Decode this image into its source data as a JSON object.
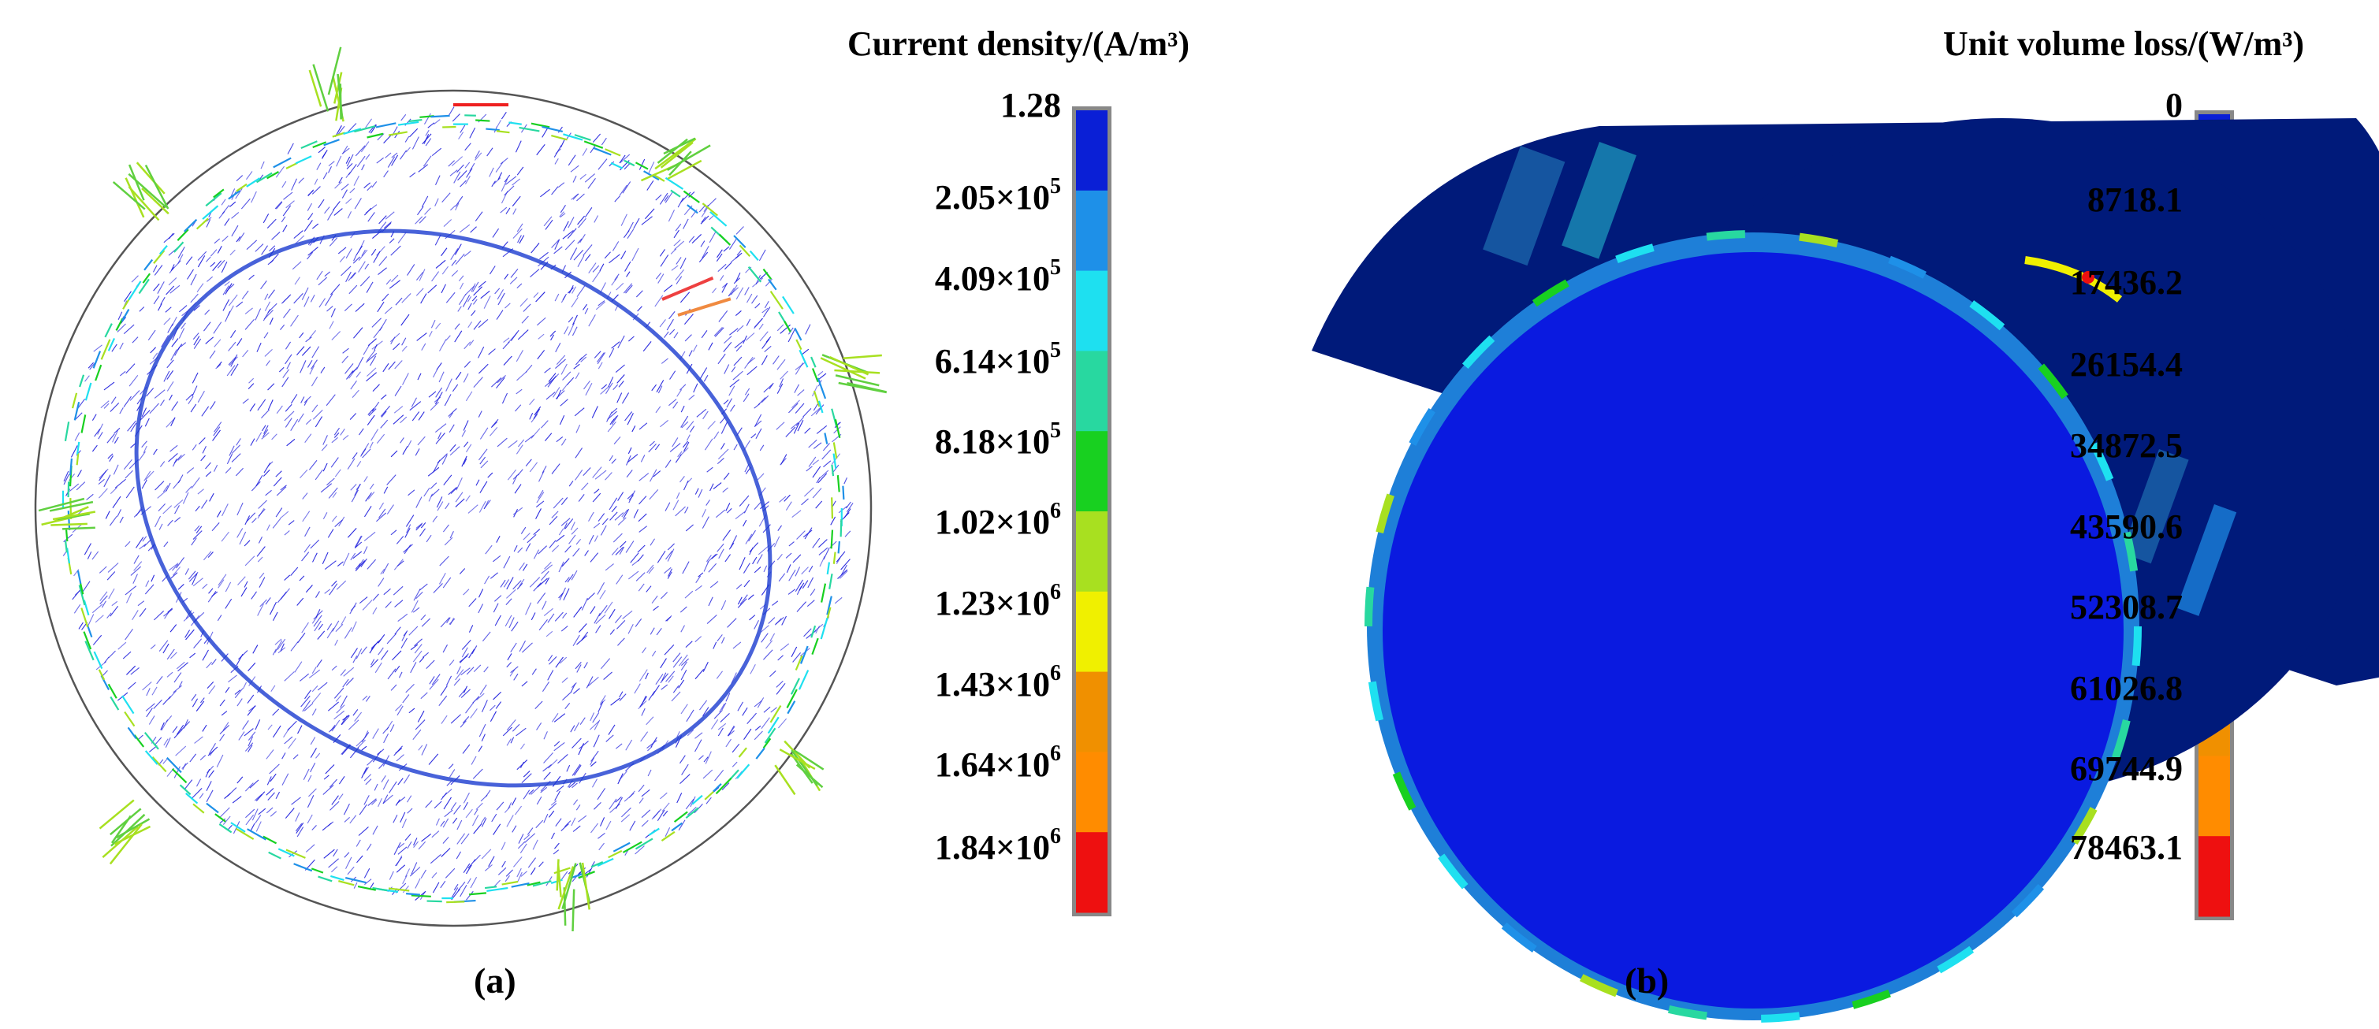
{
  "panel_a": {
    "label": "(a)",
    "colorbar_title": "Current density/(A/m³)",
    "colorbar_ticks": [
      {
        "base": "1.28",
        "exp": ""
      },
      {
        "base": "2.05×10",
        "exp": "5"
      },
      {
        "base": "4.09×10",
        "exp": "5"
      },
      {
        "base": "6.14×10",
        "exp": "5"
      },
      {
        "base": "8.18×10",
        "exp": "5"
      },
      {
        "base": "1.02×10",
        "exp": "6"
      },
      {
        "base": "1.23×10",
        "exp": "6"
      },
      {
        "base": "1.43×10",
        "exp": "6"
      },
      {
        "base": "1.64×10",
        "exp": "6"
      },
      {
        "base": "1.84×10",
        "exp": "6"
      }
    ]
  },
  "panel_b": {
    "label": "(b)",
    "colorbar_title": "Unit volume loss/(W/m³)",
    "colorbar_ticks": [
      "0",
      "8718.1",
      "17436.2",
      "26154.4",
      "34872.5",
      "43590.6",
      "52308.7",
      "61026.8",
      "69744.9",
      "78463.1"
    ]
  },
  "colorbar_colors": [
    "#0a1fd6",
    "#1e90e8",
    "#1ee0f0",
    "#28d8a0",
    "#18d020",
    "#a8e020",
    "#f0f000",
    "#f09000",
    "#ff8c00",
    "#ee1010"
  ],
  "colors": {
    "vector_blue": "#1a1adc",
    "rim_dark": "#0a0a8a",
    "face_blue": "#0a1ae0",
    "side_dark": "#001a7a"
  }
}
